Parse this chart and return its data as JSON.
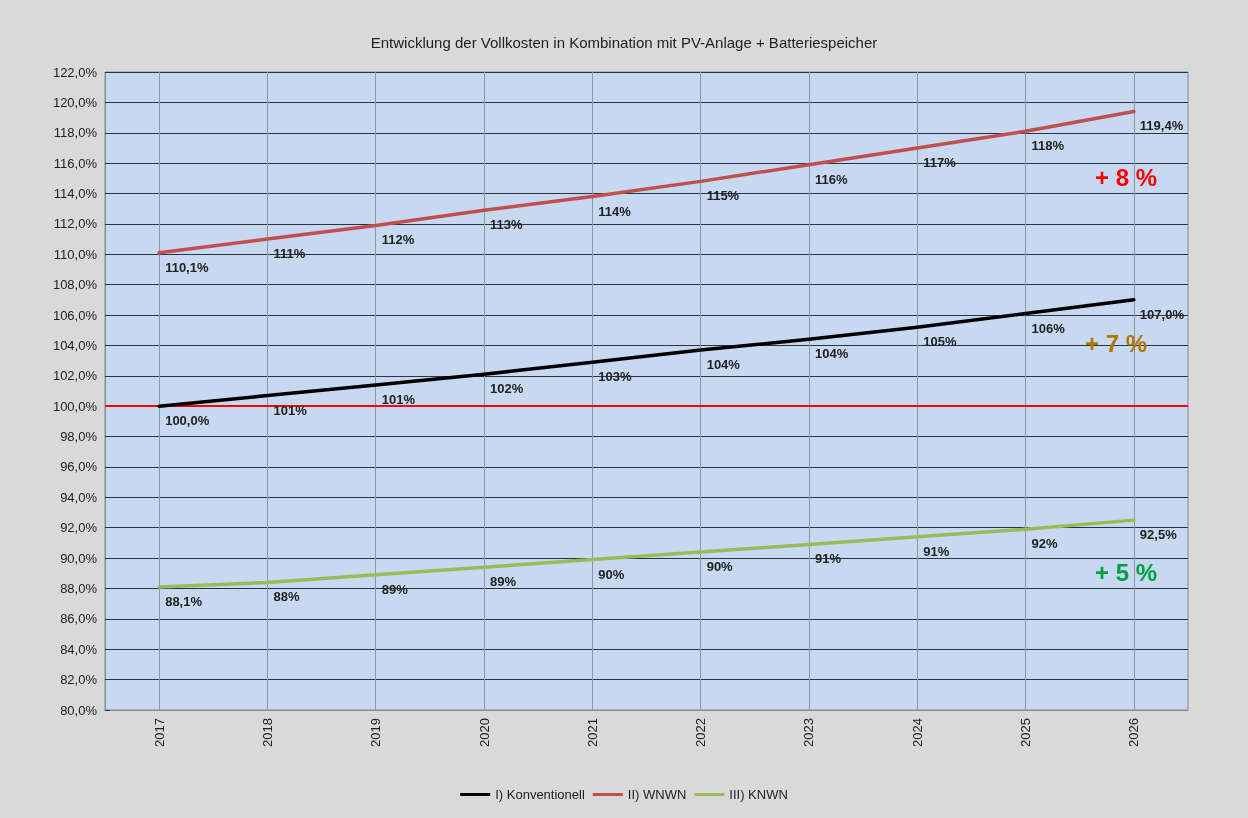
{
  "chart_data": {
    "type": "line",
    "title": "Entwicklung der Vollkosten in Kombination mit PV-Anlage + Batteriespeicher",
    "categories": [
      "2017",
      "2018",
      "2019",
      "2020",
      "2021",
      "2022",
      "2023",
      "2024",
      "2025",
      "2026"
    ],
    "series": [
      {
        "name": "I) Konventionell",
        "color": "#000000",
        "values": [
          100.0,
          100.7,
          101.4,
          102.1,
          102.9,
          103.7,
          104.4,
          105.2,
          106.1,
          107.0
        ],
        "value_labels": [
          "100,0%",
          "101%",
          "101%",
          "102%",
          "103%",
          "104%",
          "104%",
          "105%",
          "106%",
          "107,0%"
        ]
      },
      {
        "name": "II) WNWN",
        "color": "#c0504d",
        "values": [
          110.1,
          111.0,
          111.9,
          112.9,
          113.8,
          114.8,
          115.9,
          117.0,
          118.1,
          119.4
        ],
        "value_labels": [
          "110,1%",
          "111%",
          "112%",
          "113%",
          "114%",
          "115%",
          "116%",
          "117%",
          "118%",
          "119,4%"
        ]
      },
      {
        "name": "III) KNWN",
        "color": "#9bbb59",
        "values": [
          88.1,
          88.4,
          88.9,
          89.4,
          89.9,
          90.4,
          90.9,
          91.4,
          91.9,
          92.5
        ],
        "value_labels": [
          "88,1%",
          "88%",
          "89%",
          "89%",
          "90%",
          "90%",
          "91%",
          "91%",
          "92%",
          "92,5%"
        ]
      }
    ],
    "ylim": [
      80,
      122
    ],
    "yticks": [
      {
        "value": 80,
        "label": "80,0%"
      },
      {
        "value": 82,
        "label": "82,0%"
      },
      {
        "value": 84,
        "label": "84,0%"
      },
      {
        "value": 86,
        "label": "86,0%"
      },
      {
        "value": 88,
        "label": "88,0%"
      },
      {
        "value": 90,
        "label": "90,0%"
      },
      {
        "value": 92,
        "label": "92,0%"
      },
      {
        "value": 94,
        "label": "94,0%"
      },
      {
        "value": 96,
        "label": "96,0%"
      },
      {
        "value": 98,
        "label": "98,0%"
      },
      {
        "value": 100,
        "label": "100,0%"
      },
      {
        "value": 102,
        "label": "102,0%"
      },
      {
        "value": 104,
        "label": "104,0%"
      },
      {
        "value": 106,
        "label": "106,0%"
      },
      {
        "value": 108,
        "label": "108,0%"
      },
      {
        "value": 110,
        "label": "110,0%"
      },
      {
        "value": 112,
        "label": "112,0%"
      },
      {
        "value": 114,
        "label": "114,0%"
      },
      {
        "value": 116,
        "label": "116,0%"
      },
      {
        "value": 118,
        "label": "118,0%"
      },
      {
        "value": 120,
        "label": "120,0%"
      },
      {
        "value": 122,
        "label": "122,0%"
      }
    ],
    "ref_lines": [
      {
        "axis": "y",
        "value": 100,
        "color": "#ff0000"
      }
    ],
    "annotations": [
      "+ 8 %",
      "+ 7 %",
      "+ 5 %"
    ],
    "grid": true,
    "legend": "bottom",
    "marker": "none",
    "line_style": "solid"
  }
}
